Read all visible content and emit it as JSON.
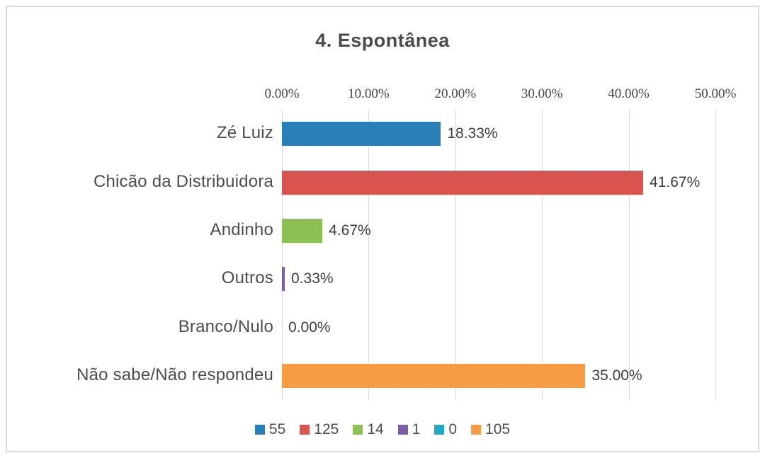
{
  "chart_data": {
    "type": "bar",
    "orientation": "horizontal",
    "title": "4. Espontânea",
    "categories": [
      "Zé Luiz",
      "Chicão da Distribuidora",
      "Andinho",
      "Outros",
      "Branco/Nulo",
      "Não sabe/Não respondeu"
    ],
    "values": [
      18.33,
      41.67,
      4.67,
      0.33,
      0.0,
      35.0
    ],
    "value_labels": [
      "18.33%",
      "41.67%",
      "4.67%",
      "0.33%",
      "0.00%",
      "35.00%"
    ],
    "counts": [
      55,
      125,
      14,
      1,
      0,
      105
    ],
    "bar_colors": [
      "#2980b9",
      "#d9534f",
      "#8dc054",
      "#7b5ea7",
      "#20a8c4",
      "#f89c44"
    ],
    "x_axis": {
      "position": "top",
      "tick_labels": [
        "0.00%",
        "10.00%",
        "20.00%",
        "30.00%",
        "40.00%",
        "50.00%"
      ],
      "tick_values": [
        0,
        10,
        20,
        30,
        40,
        50
      ],
      "min": 0,
      "max": 50,
      "grid": true
    },
    "legend": {
      "position": "bottom",
      "entries": [
        {
          "label": "55",
          "color": "#2980b9"
        },
        {
          "label": "125",
          "color": "#d9534f"
        },
        {
          "label": "14",
          "color": "#8dc054"
        },
        {
          "label": "1",
          "color": "#7b5ea7"
        },
        {
          "label": "0",
          "color": "#20a8c4"
        },
        {
          "label": "105",
          "color": "#f89c44"
        }
      ]
    },
    "style": {
      "title_color": "#4a4a4a",
      "category_label_color": "#4d4d4d",
      "value_label_color": "#3c3c3c",
      "axis_label_color": "#454545",
      "gridline_color": "#d9d9d9",
      "frame_border_color": "#d9d9d9"
    }
  }
}
